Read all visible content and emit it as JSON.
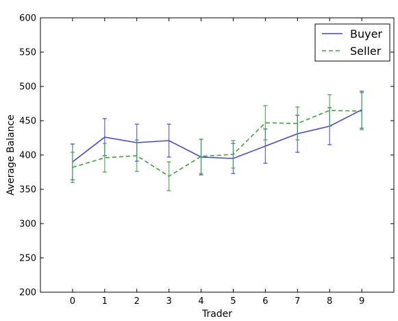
{
  "chart_data": {
    "type": "line",
    "title": "",
    "xlabel": "Trader",
    "ylabel": "Average Balance",
    "xlim": [
      -1,
      10
    ],
    "ylim": [
      200,
      600
    ],
    "x_ticks": [
      0,
      1,
      2,
      3,
      4,
      5,
      6,
      7,
      8,
      9
    ],
    "x_tick_labels": [
      "0",
      "1",
      "2",
      "3",
      "4",
      "5",
      "6",
      "7",
      "8",
      "9"
    ],
    "y_ticks": [
      200,
      250,
      300,
      350,
      400,
      450,
      500,
      550,
      600
    ],
    "y_tick_labels": [
      "200",
      "250",
      "300",
      "350",
      "400",
      "450",
      "500",
      "550",
      "600"
    ],
    "grid": false,
    "legend_position": "top-right",
    "x": [
      0,
      1,
      2,
      3,
      4,
      5,
      6,
      7,
      8,
      9
    ],
    "series": [
      {
        "name": "Buyer",
        "color": "#4444ee",
        "style": "solid",
        "values": [
          390,
          426,
          418,
          421,
          397,
          395,
          413,
          431,
          442,
          466
        ],
        "errors": [
          26,
          27,
          27,
          24,
          26,
          22,
          25,
          27,
          27,
          27
        ]
      },
      {
        "name": "Seller",
        "color": "#33aa33",
        "style": "dashed",
        "values": [
          382,
          396,
          399,
          369,
          398,
          401,
          447,
          446,
          465,
          464
        ],
        "errors": [
          22,
          21,
          23,
          21,
          25,
          20,
          25,
          24,
          23,
          27
        ]
      }
    ]
  }
}
